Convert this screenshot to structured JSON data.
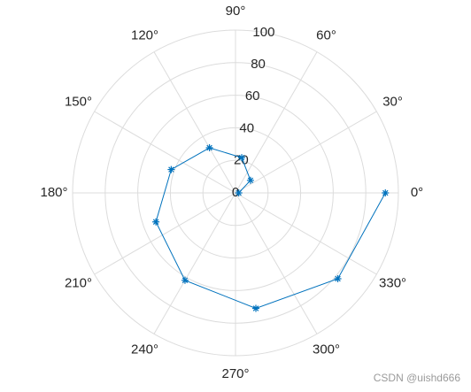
{
  "chart_data": {
    "type": "polar",
    "x": [
      0,
      40,
      80,
      120,
      160,
      200,
      240,
      280,
      320,
      360
    ],
    "series": [
      {
        "color": "#0072bd",
        "values": [
          2,
          12,
          22,
          32,
          42,
          52,
          62,
          72,
          82,
          92
        ]
      }
    ],
    "rlim": [
      0,
      100
    ],
    "rticks": [
      0,
      20,
      40,
      60,
      80,
      100
    ],
    "thetaticks": [
      {
        "value": 0,
        "label": "0°"
      },
      {
        "value": 30,
        "label": "30°"
      },
      {
        "value": 60,
        "label": "60°"
      },
      {
        "value": 90,
        "label": "90°"
      },
      {
        "value": 120,
        "label": "120°"
      },
      {
        "value": 150,
        "label": "150°"
      },
      {
        "value": 180,
        "label": "180°"
      },
      {
        "value": 210,
        "label": "210°"
      },
      {
        "value": 240,
        "label": "240°"
      },
      {
        "value": 270,
        "label": "270°"
      },
      {
        "value": 300,
        "label": "300°"
      },
      {
        "value": 330,
        "label": "330°"
      }
    ],
    "grid": true,
    "marker": "*"
  },
  "watermark": "CSDN @uishd666"
}
